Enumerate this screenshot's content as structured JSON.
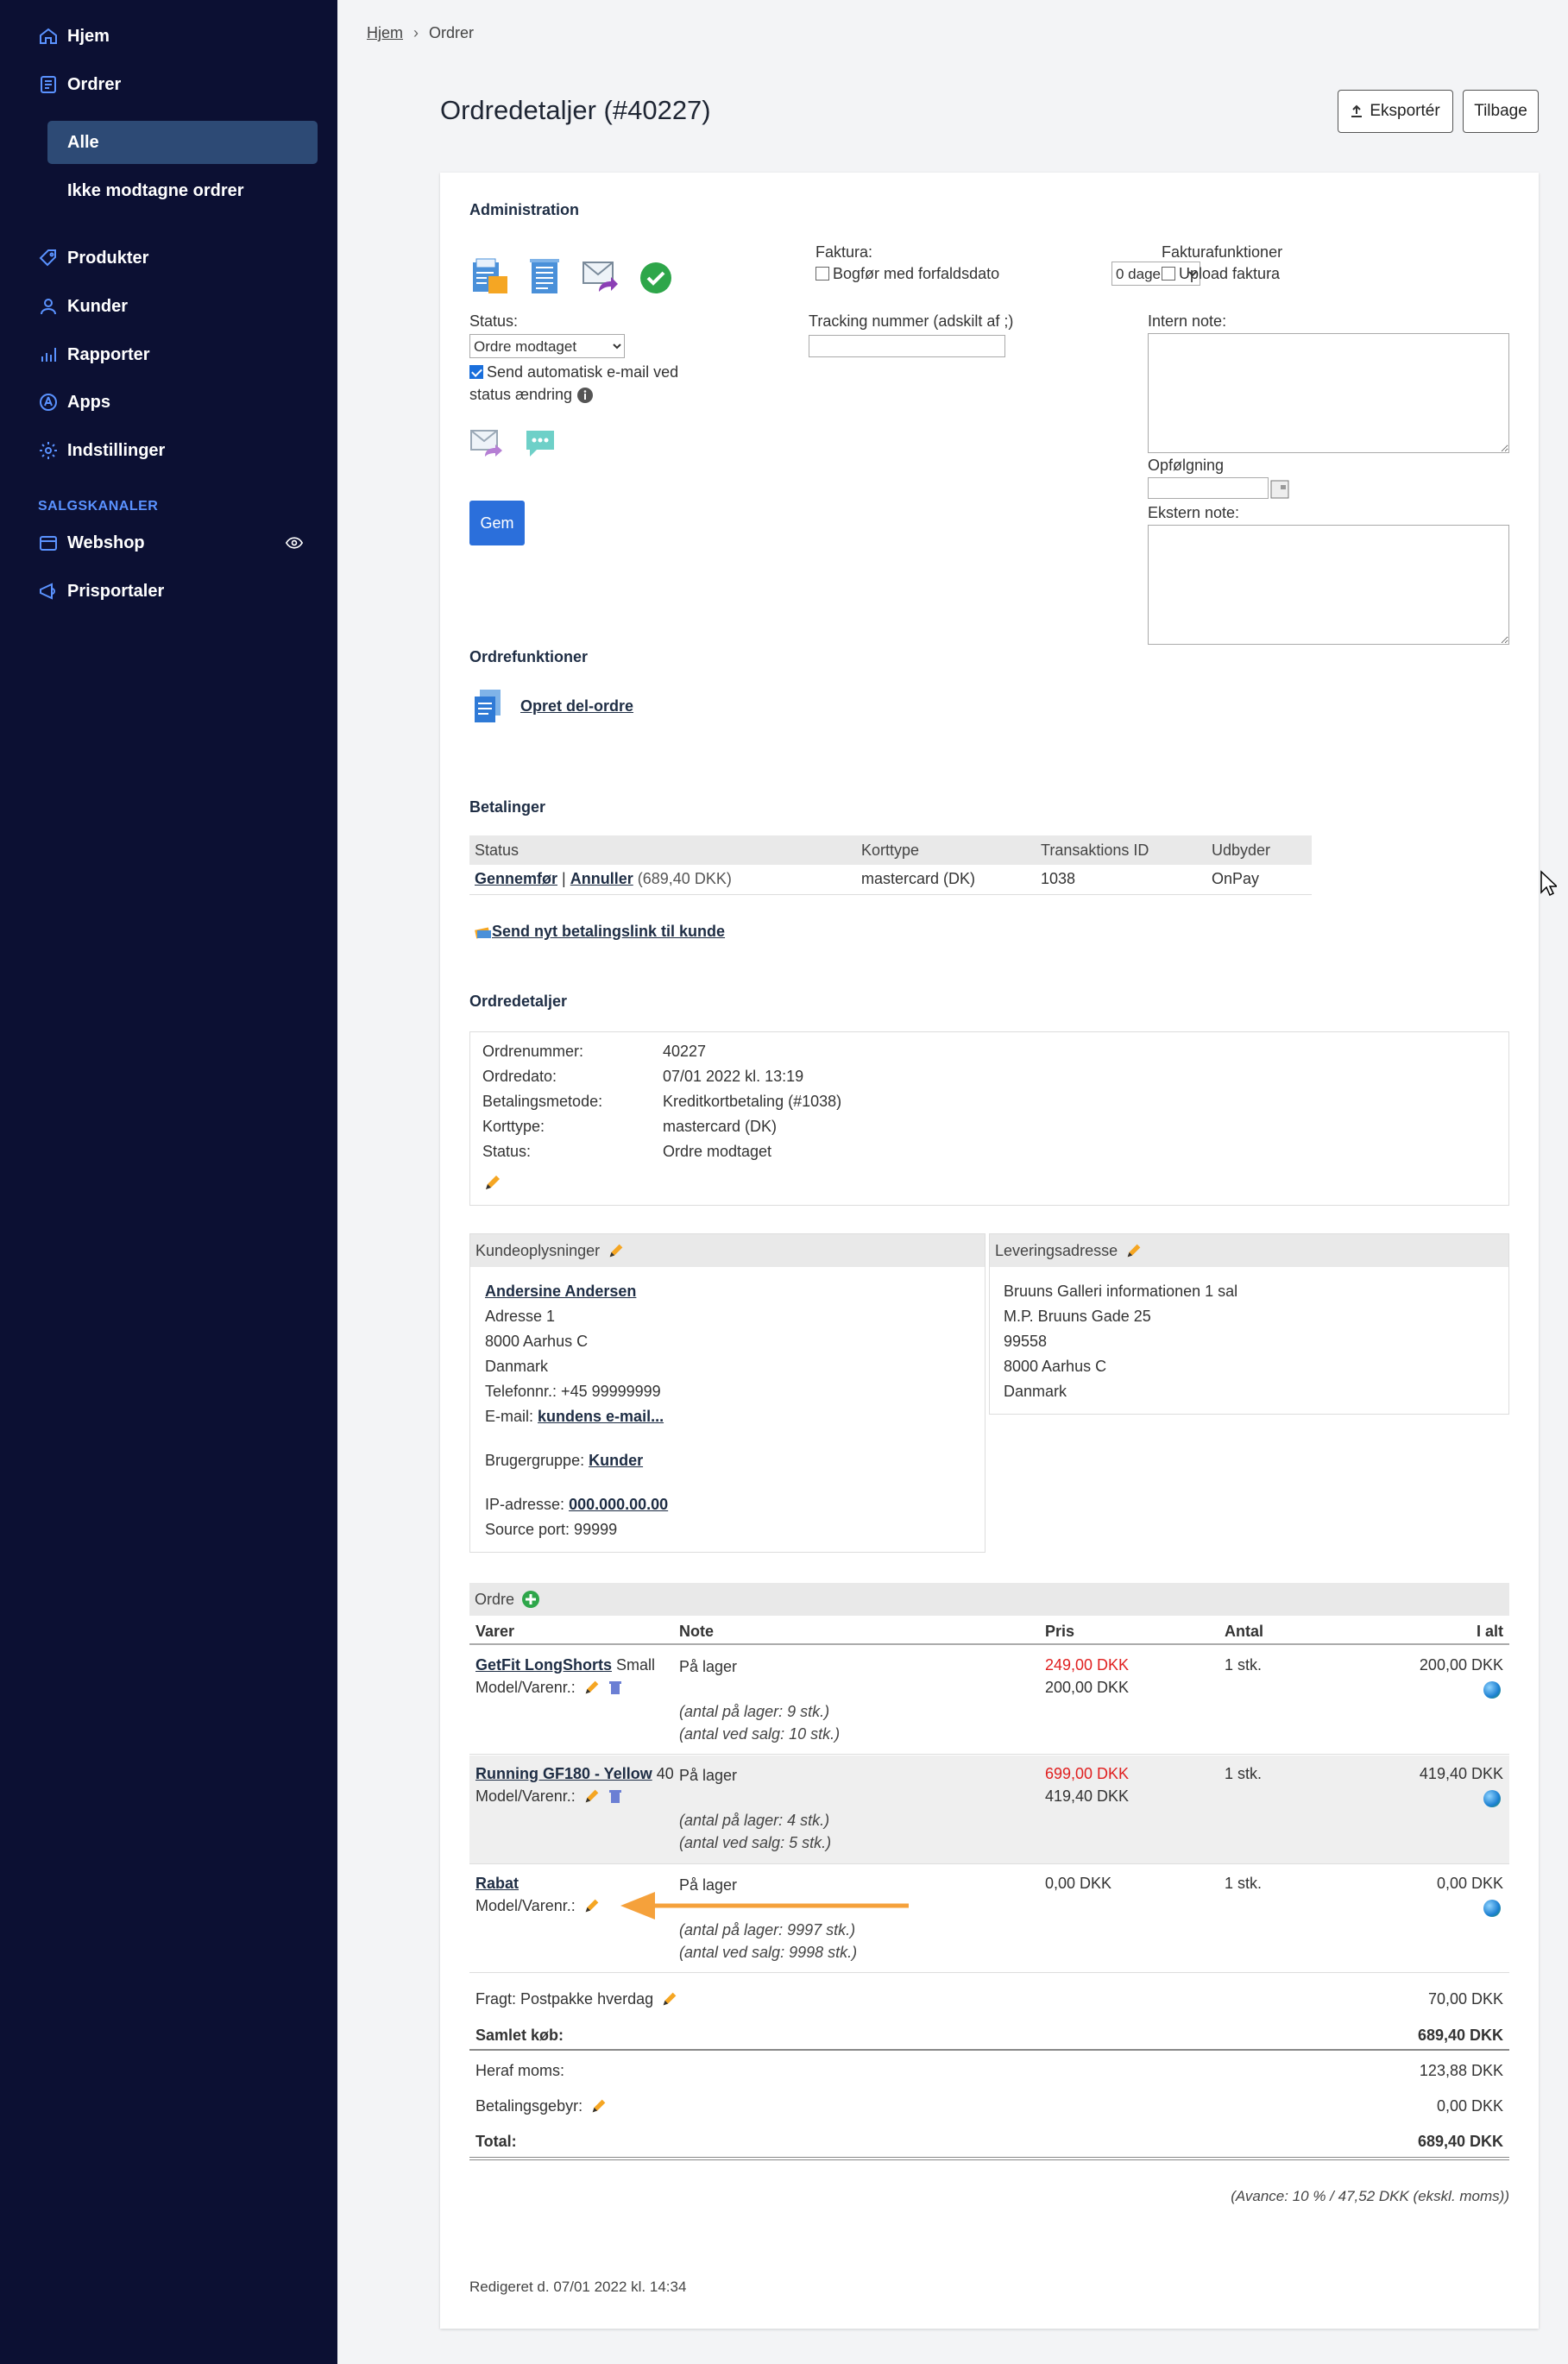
{
  "sidebar": {
    "items": [
      {
        "label": "Hjem",
        "icon": "home-icon"
      },
      {
        "label": "Ordrer",
        "icon": "orders-icon"
      },
      {
        "label": "Alle"
      },
      {
        "label": "Ikke modtagne ordrer"
      },
      {
        "label": "Produkter",
        "icon": "tag-icon"
      },
      {
        "label": "Kunder",
        "icon": "user-icon"
      },
      {
        "label": "Rapporter",
        "icon": "bar-chart-icon"
      },
      {
        "label": "Apps",
        "icon": "apps-icon"
      },
      {
        "label": "Indstillinger",
        "icon": "gear-icon"
      }
    ],
    "section_title": "SALGSKANALER",
    "channels": [
      {
        "label": "Webshop",
        "icon": "store-icon"
      },
      {
        "label": "Prisportaler",
        "icon": "megaphone-icon"
      }
    ],
    "accent_color": "#5a92ff",
    "background": "#0c1033"
  },
  "breadcrumb": {
    "home": "Hjem",
    "current": "Ordrer"
  },
  "page_title": "Ordredetaljer (#40227)",
  "buttons": {
    "export": "Eksportér",
    "back": "Tilbage",
    "save": "Gem"
  },
  "admin": {
    "title": "Administration",
    "status_label": "Status:",
    "status_value": "Ordre modtaget",
    "auto_email_label": "Send automatisk e-mail ved status ændring",
    "faktura_label": "Faktura:",
    "bogfor_label": "Bogfør med forfaldsdato",
    "days_value": "0 dage",
    "tracking_label": "Tracking nummer (adskilt af ;)",
    "fakturafunktioner_label": "Fakturafunktioner",
    "upload_label": "Upload faktura",
    "intern_note_label": "Intern note:",
    "opfolgning_label": "Opfølgning",
    "ekstern_note_label": "Ekstern note:"
  },
  "ordrefunktioner": {
    "title": "Ordrefunktioner",
    "create_sub": "Opret del-ordre"
  },
  "payments": {
    "title": "Betalinger",
    "columns": [
      "Status",
      "Korttype",
      "Transaktions ID",
      "Udbyder"
    ],
    "row": {
      "complete": "Gennemfør",
      "separator": "|",
      "cancel": "Annuller",
      "amount": "(689,40 DKK)",
      "card": "mastercard (DK)",
      "transaction": "1038",
      "provider": "OnPay"
    },
    "send_link": "Send nyt betalingslink til kunde"
  },
  "details": {
    "title": "Ordredetaljer",
    "rows": [
      {
        "k": "Ordrenummer:",
        "v": "40227"
      },
      {
        "k": "Ordredato:",
        "v": "07/01 2022 kl. 13:19"
      },
      {
        "k": "Betalingsmetode:",
        "v": "Kreditkortbetaling (#1038)"
      },
      {
        "k": "Korttype:",
        "v": "mastercard (DK)"
      },
      {
        "k": "Status:",
        "v": "Ordre modtaget"
      }
    ]
  },
  "customer": {
    "title": "Kundeoplysninger",
    "name": "Andersine Andersen",
    "address1": "Adresse 1",
    "city": "8000 Aarhus C",
    "country": "Danmark",
    "phone": "Telefonnr.: +45 99999999",
    "email_label": "E-mail:",
    "email_link": "kundens e-mail...",
    "group_label": "Brugergruppe:",
    "group_link": "Kunder",
    "ip_label": "IP-adresse:",
    "ip_link": "000.000.00.00",
    "source_port": "Source port: 99999"
  },
  "delivery": {
    "title": "Leveringsadresse",
    "lines": [
      "Bruuns Galleri informationen 1 sal",
      "M.P. Bruuns Gade 25",
      "99558",
      "8000 Aarhus C",
      "Danmark"
    ]
  },
  "order": {
    "title": "Ordre",
    "columns": [
      "Varer",
      "Note",
      "Pris",
      "Antal",
      "I alt"
    ],
    "model_label": "Model/Varenr.:",
    "items": [
      {
        "name": "GetFit LongShorts",
        "variant": "Small",
        "note": "På lager",
        "stock": "(antal på lager: 9 stk.)",
        "sale": "(antal ved salg: 10 stk.)",
        "price_old": "249,00 DKK",
        "price": "200,00 DKK",
        "qty": "1 stk.",
        "total": "200,00 DKK"
      },
      {
        "name": "Running GF180 - Yellow",
        "variant": "40",
        "note": "På lager",
        "stock": "(antal på lager: 4 stk.)",
        "sale": "(antal ved salg: 5 stk.)",
        "price_old": "699,00 DKK",
        "price": "419,40 DKK",
        "qty": "1 stk.",
        "total": "419,40 DKK"
      },
      {
        "name": "Rabat",
        "variant": "",
        "note": "På lager",
        "stock": "(antal på lager: 9997 stk.)",
        "sale": "(antal ved salg: 9998 stk.)",
        "price_old": "",
        "price": "0,00 DKK",
        "qty": "1 stk.",
        "total": "0,00 DKK"
      }
    ],
    "freight": {
      "label": "Fragt: Postpakke hverdag",
      "value": "70,00 DKK"
    },
    "total_purchase": {
      "label": "Samlet køb:",
      "value": "689,40 DKK"
    },
    "vat": {
      "label": "Heraf moms:",
      "value": "123,88 DKK"
    },
    "fee": {
      "label": "Betalingsgebyr:",
      "value": "0,00 DKK"
    },
    "total": {
      "label": "Total:",
      "value": "689,40 DKK"
    },
    "margin": "(Avance: 10 % / 47,52 DKK (ekskl. moms))"
  },
  "edited": "Redigeret d. 07/01 2022 kl. 14:34"
}
